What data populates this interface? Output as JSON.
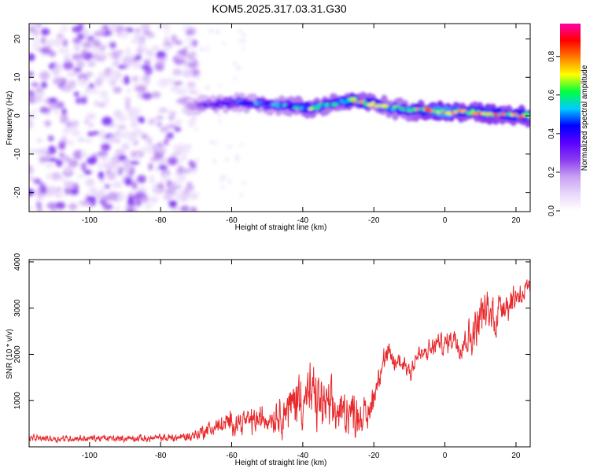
{
  "chart_data": [
    {
      "type": "heatmap",
      "title": "KOM5.2025.317.03.31.G30",
      "xlabel": "Height of straight line (km)",
      "ylabel": "Frequency (Hz)",
      "xlim": [
        -117,
        24
      ],
      "ylim": [
        -25,
        24
      ],
      "xticks": [
        -100,
        -80,
        -60,
        -40,
        -20,
        0,
        20
      ],
      "yticks": [
        -20,
        -10,
        0,
        10,
        20
      ],
      "colorbar": {
        "label": "Normalized spectral amplitude",
        "range": [
          0.0,
          0.97
        ],
        "ticks": [
          0.0,
          0.2,
          0.4,
          0.6,
          0.8
        ],
        "tick_labels": [
          "0.0",
          "0.2",
          "0.4",
          "0.6",
          "0.8"
        ],
        "colors": [
          "#ffffff",
          "#e9d8fb",
          "#c8a0f2",
          "#8a3cf0",
          "#5a00ff",
          "#0000ff",
          "#00ccff",
          "#00ff40",
          "#ffff00",
          "#ff7f00",
          "#ff0000",
          "#ff00aa"
        ]
      },
      "noise_region": {
        "x_range": [
          -117,
          -70
        ],
        "y_range": [
          -25,
          24
        ],
        "amplitude": [
          0.05,
          0.3
        ]
      },
      "ridge": [
        {
          "x": -72,
          "y": 2.5,
          "amplitude": 0.3
        },
        {
          "x": -65,
          "y": 3.0,
          "amplitude": 0.4
        },
        {
          "x": -58,
          "y": 3.5,
          "amplitude": 0.45
        },
        {
          "x": -50,
          "y": 3.0,
          "amplitude": 0.5
        },
        {
          "x": -44,
          "y": 2.5,
          "amplitude": 0.55
        },
        {
          "x": -38,
          "y": 2.0,
          "amplitude": 0.65
        },
        {
          "x": -32,
          "y": 3.0,
          "amplitude": 0.6
        },
        {
          "x": -26,
          "y": 4.0,
          "amplitude": 0.7
        },
        {
          "x": -20,
          "y": 3.0,
          "amplitude": 0.65
        },
        {
          "x": -15,
          "y": 2.0,
          "amplitude": 0.6
        },
        {
          "x": -10,
          "y": 1.5,
          "amplitude": 0.6
        },
        {
          "x": -6,
          "y": 1.5,
          "amplitude": 0.75
        },
        {
          "x": -2,
          "y": 1.0,
          "amplitude": 0.85
        },
        {
          "x": 2,
          "y": 1.0,
          "amplitude": 0.85
        },
        {
          "x": 7,
          "y": 1.0,
          "amplitude": 0.65
        },
        {
          "x": 12,
          "y": 0.5,
          "amplitude": 0.8
        },
        {
          "x": 17,
          "y": 0.5,
          "amplitude": 0.7
        },
        {
          "x": 22,
          "y": 0.0,
          "amplitude": 0.75
        }
      ]
    },
    {
      "type": "line",
      "title": "",
      "xlabel": "Height of straight line (km)",
      "ylabel": "SNR (10 * v/v)",
      "xlim": [
        -117,
        24
      ],
      "ylim": [
        0,
        4050
      ],
      "xticks": [
        -100,
        -80,
        -60,
        -40,
        -20,
        0,
        20
      ],
      "yticks": [
        1000,
        2000,
        3000,
        4000
      ],
      "color": "#e8282b",
      "series": [
        {
          "name": "SNR",
          "x": [
            -117,
            -110,
            -100,
            -90,
            -80,
            -72,
            -65,
            -60,
            -55,
            -50,
            -45,
            -42,
            -40,
            -38,
            -36,
            -34,
            -32,
            -30,
            -28,
            -26,
            -24,
            -22,
            -20,
            -18,
            -16,
            -14,
            -12,
            -10,
            -8,
            -6,
            -4,
            -2,
            0,
            2,
            4,
            6,
            8,
            10,
            12,
            14,
            16,
            18,
            20,
            22,
            24
          ],
          "mean": [
            180,
            180,
            180,
            180,
            185,
            220,
            420,
            520,
            560,
            620,
            760,
            1000,
            1150,
            1050,
            1000,
            880,
            820,
            700,
            820,
            760,
            700,
            620,
            1150,
            1750,
            1950,
            1800,
            1850,
            1650,
            1950,
            2000,
            2100,
            2250,
            2200,
            2400,
            2250,
            2350,
            2450,
            2900,
            2900,
            2800,
            3150,
            3100,
            3300,
            3350,
            3400
          ],
          "spread": [
            100,
            100,
            100,
            100,
            110,
            150,
            250,
            320,
            380,
            430,
            600,
            800,
            950,
            900,
            850,
            800,
            700,
            650,
            650,
            600,
            550,
            500,
            500,
            400,
            380,
            350,
            350,
            330,
            320,
            300,
            300,
            300,
            320,
            350,
            400,
            450,
            550,
            600,
            650,
            650,
            500,
            450,
            400,
            350,
            300
          ]
        }
      ]
    }
  ]
}
